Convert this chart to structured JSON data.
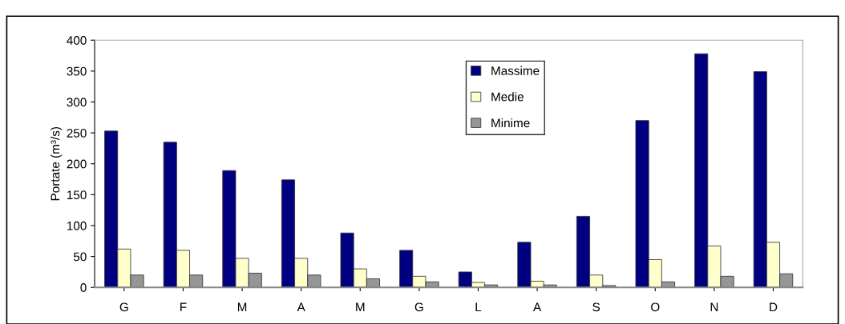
{
  "chart_data": {
    "type": "bar",
    "ylabel": "Portate (m³/s)",
    "categories": [
      "G",
      "F",
      "M",
      "A",
      "M",
      "G",
      "L",
      "A",
      "S",
      "O",
      "N",
      "D"
    ],
    "series": [
      {
        "name": "Massime",
        "color": "#000080",
        "values": [
          253,
          235,
          189,
          174,
          88,
          60,
          25,
          73,
          115,
          270,
          378,
          349
        ]
      },
      {
        "name": "Medie",
        "color": "#ffffcc",
        "values": [
          62,
          60,
          47,
          47,
          30,
          18,
          8,
          10,
          20,
          45,
          67,
          73
        ]
      },
      {
        "name": "Minime",
        "color": "#969696",
        "values": [
          20,
          20,
          23,
          20,
          14,
          9,
          4,
          4,
          3,
          9,
          18,
          22
        ]
      }
    ],
    "ylim": [
      0,
      400
    ],
    "yticks": [
      0,
      50,
      100,
      150,
      200,
      250,
      300,
      350,
      400
    ],
    "grid": false,
    "legend": "top"
  }
}
